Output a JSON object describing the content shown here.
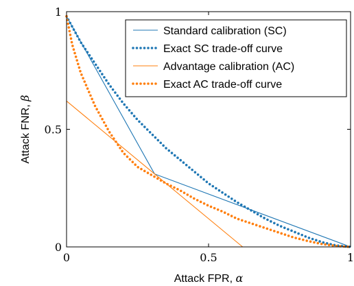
{
  "chart_data": {
    "type": "line",
    "xlabel": "Attack FPR, ",
    "xlabel_symbol": "α",
    "ylabel": "Attack FNR, ",
    "ylabel_symbol": "β",
    "xlim": [
      0,
      1
    ],
    "ylim": [
      0,
      1
    ],
    "x_ticks": [
      0,
      0.5,
      1
    ],
    "x_tick_labels": [
      "0",
      "0.5",
      "1"
    ],
    "y_ticks": [
      0,
      0.5,
      1
    ],
    "y_tick_labels": [
      "0",
      "0.5",
      "1"
    ],
    "grid": false,
    "legend_position": "top-right",
    "series": [
      {
        "name": "Standard calibration (SC)",
        "style": "solid",
        "color": "#1f77b4",
        "x": [
          0,
          0.31,
          1
        ],
        "y": [
          0.98,
          0.31,
          0
        ]
      },
      {
        "name": "Exact SC trade-off curve",
        "style": "dotted",
        "color": "#1f77b4",
        "x": [
          0,
          0.05,
          0.1,
          0.15,
          0.2,
          0.25,
          0.3,
          0.35,
          0.4,
          0.45,
          0.5,
          0.55,
          0.6,
          0.65,
          0.7,
          0.75,
          0.8,
          0.85,
          0.9,
          0.95,
          1
        ],
        "y": [
          0.98,
          0.87,
          0.78,
          0.69,
          0.61,
          0.54,
          0.48,
          0.42,
          0.37,
          0.32,
          0.27,
          0.23,
          0.19,
          0.155,
          0.12,
          0.09,
          0.065,
          0.04,
          0.02,
          0.006,
          0
        ]
      },
      {
        "name": "Advantage calibration (AC)",
        "style": "solid",
        "color": "#ff7f0e",
        "x": [
          0,
          0.62
        ],
        "y": [
          0.62,
          0
        ]
      },
      {
        "name": "Exact AC trade-off curve",
        "style": "dotted",
        "color": "#ff7f0e",
        "x": [
          0,
          0.02,
          0.05,
          0.1,
          0.15,
          0.2,
          0.25,
          0.3,
          0.35,
          0.4,
          0.45,
          0.5,
          0.55,
          0.6,
          0.65,
          0.7,
          0.75,
          0.8,
          0.85,
          0.9,
          0.95,
          1
        ],
        "y": [
          0.98,
          0.86,
          0.74,
          0.6,
          0.49,
          0.4,
          0.34,
          0.305,
          0.27,
          0.24,
          0.205,
          0.175,
          0.15,
          0.12,
          0.1,
          0.08,
          0.06,
          0.04,
          0.025,
          0.012,
          0.004,
          0
        ]
      }
    ]
  }
}
